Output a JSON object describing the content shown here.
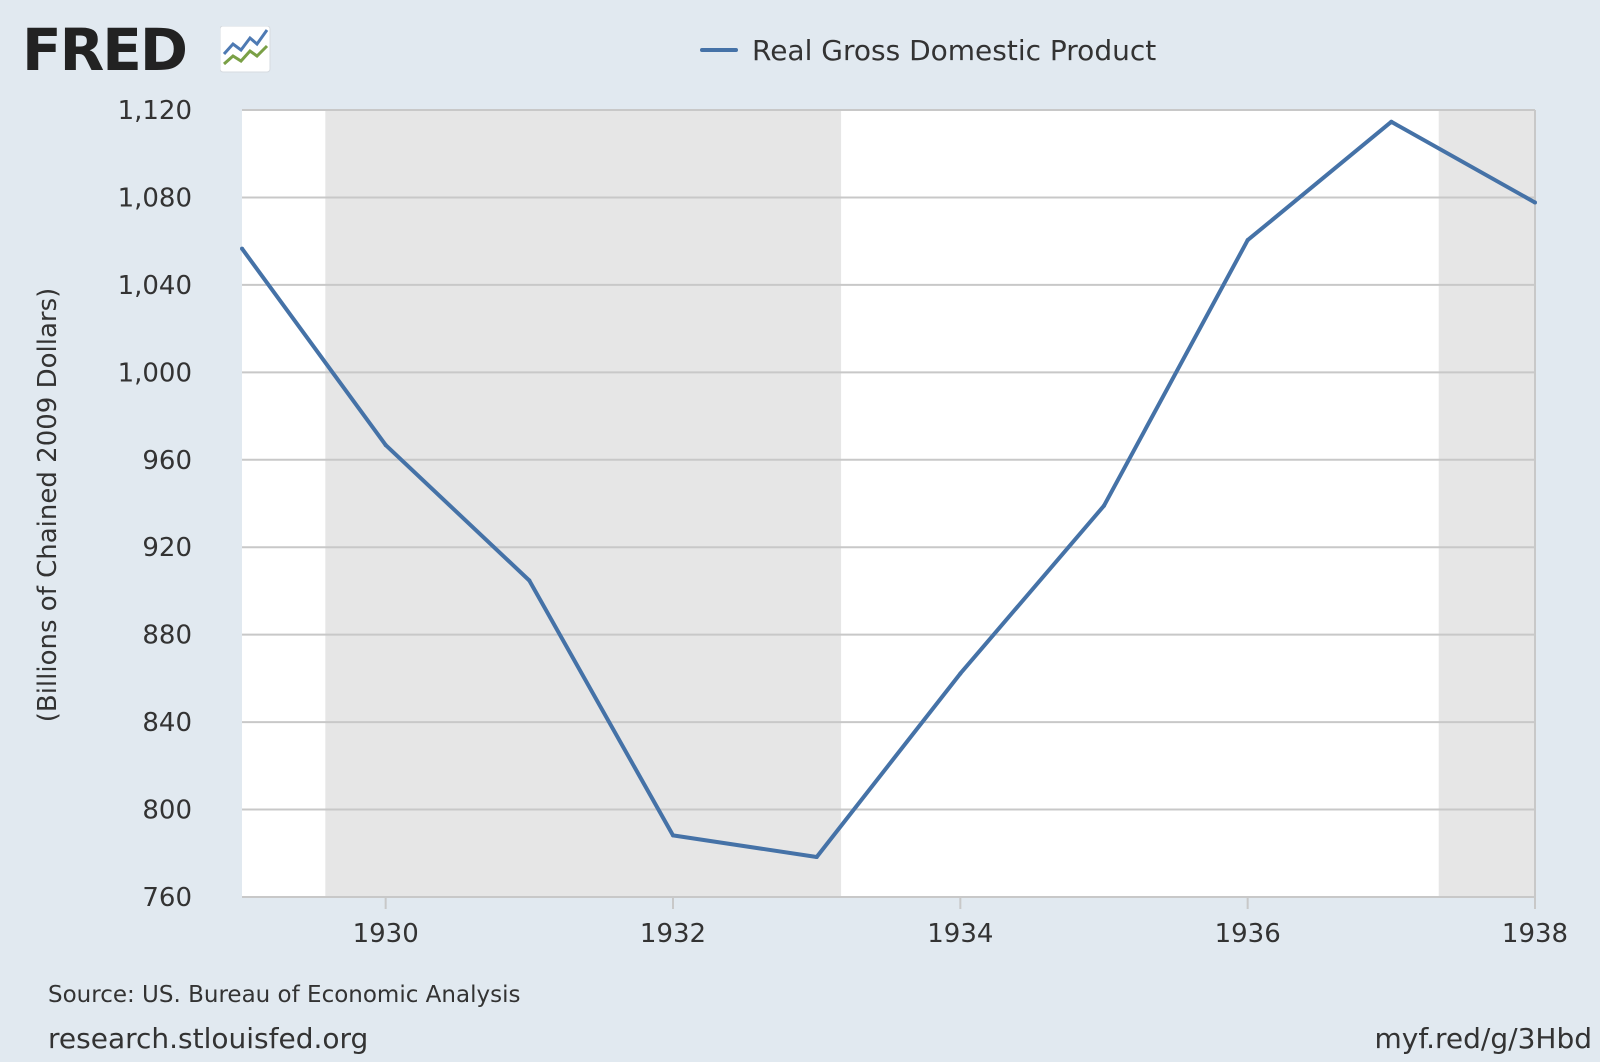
{
  "brand": {
    "logo_text": "FRED",
    "logo_icon": "line-chart-logo-icon"
  },
  "colors": {
    "background": "#e1e9f0",
    "plot_background": "#ffffff",
    "recession_shade": "#e6e6e6",
    "series_line": "#4572a7",
    "gridline": "#c8c8c8",
    "logo_blue": "#4e7ab3",
    "logo_green": "#7aa046"
  },
  "legend": {
    "label": "Real Gross Domestic Product"
  },
  "footer": {
    "source": "Source: US. Bureau of Economic Analysis",
    "site": "research.stlouisfed.org",
    "short_link": "myf.red/g/3Hbd"
  },
  "chart_data": {
    "type": "line",
    "title": "",
    "xlabel": "",
    "ylabel": "(Billions of Chained 2009 Dollars)",
    "xlim": [
      1929,
      1938
    ],
    "ylim": [
      760,
      1120
    ],
    "y_ticks": [
      760,
      800,
      840,
      880,
      920,
      960,
      1000,
      1040,
      1080,
      1120
    ],
    "y_tick_labels": [
      "760",
      "800",
      "840",
      "880",
      "920",
      "960",
      "1,000",
      "1,040",
      "1,080",
      "1,120"
    ],
    "x_ticks": [
      1930,
      1932,
      1934,
      1936,
      1938
    ],
    "x_tick_labels": [
      "1930",
      "1932",
      "1934",
      "1936",
      "1938"
    ],
    "grid": true,
    "legend_position": "top-center",
    "recessions": [
      [
        1929.58,
        1933.17
      ],
      [
        1937.33,
        1938.0
      ]
    ],
    "series": [
      {
        "name": "Real Gross Domestic Product",
        "x": [
          1929,
          1930,
          1931,
          1932,
          1933,
          1934,
          1935,
          1936,
          1937,
          1938
        ],
        "values": [
          1056.6,
          966.7,
          904.8,
          788.2,
          778.3,
          862.2,
          939.0,
          1060.5,
          1114.6,
          1077.7
        ]
      }
    ]
  }
}
